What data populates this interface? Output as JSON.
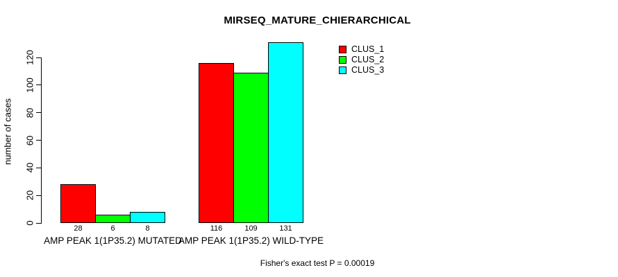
{
  "chart_data": {
    "type": "bar",
    "title": "MIRSEQ_MATURE_CHIERARCHICAL",
    "ylabel": "number of cases",
    "xlabel": "",
    "ylim": [
      0,
      120
    ],
    "yticks": [
      0,
      20,
      40,
      60,
      80,
      100,
      120
    ],
    "grid": false,
    "legend_position": "top-right-inside",
    "categories": [
      "AMP PEAK 1(1P35.2) MUTATED",
      "AMP PEAK 1(1P35.2) WILD-TYPE"
    ],
    "series": [
      {
        "name": "CLUS_1",
        "color": "#FF0000",
        "values": [
          28,
          116
        ]
      },
      {
        "name": "CLUS_2",
        "color": "#00FF00",
        "values": [
          6,
          109
        ]
      },
      {
        "name": "CLUS_3",
        "color": "#00FFFF",
        "values": [
          8,
          131
        ]
      }
    ],
    "bar_value_labels": [
      [
        28,
        116
      ],
      [
        6,
        109
      ],
      [
        8,
        131
      ]
    ],
    "footer": "Fisher's exact test P = 0.00019"
  }
}
